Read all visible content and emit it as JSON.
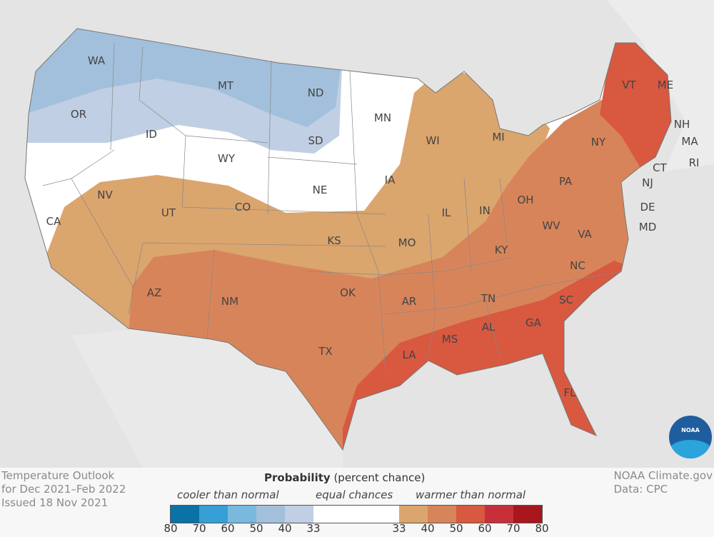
{
  "title_lines": [
    "Temperature Outlook",
    "for Dec 2021–Feb 2022",
    "Issued 18 Nov 2021"
  ],
  "credit_lines": [
    "NOAA Climate.gov",
    "Data: CPC"
  ],
  "logo_text": "NOAA",
  "legend": {
    "title_bold": "Probability",
    "title_rest": " (percent chance)",
    "categories": [
      "cooler than normal",
      "equal chances",
      "warmer than normal"
    ],
    "ticks": [
      "80",
      "70",
      "60",
      "50",
      "40",
      "33",
      "33",
      "40",
      "50",
      "60",
      "70",
      "80"
    ],
    "colors": [
      "#0b72a8",
      "#36a0d6",
      "#79b9dd",
      "#a2c0db",
      "#c0cfe3",
      "#ffffff",
      "#dba56e",
      "#d8845a",
      "#d85840",
      "#c7303a",
      "#a8161e"
    ]
  },
  "states": {
    "WA": "WA",
    "OR": "OR",
    "CA": "CA",
    "ID": "ID",
    "NV": "NV",
    "MT": "MT",
    "WY": "WY",
    "UT": "UT",
    "AZ": "AZ",
    "CO": "CO",
    "NM": "NM",
    "ND": "ND",
    "SD": "SD",
    "NE": "NE",
    "KS": "KS",
    "OK": "OK",
    "TX": "TX",
    "MN": "MN",
    "IA": "IA",
    "MO": "MO",
    "AR": "AR",
    "LA": "LA",
    "WI": "WI",
    "IL": "IL",
    "MI": "MI",
    "IN": "IN",
    "OH": "OH",
    "KY": "KY",
    "TN": "TN",
    "MS": "MS",
    "AL": "AL",
    "GA": "GA",
    "FL": "FL",
    "SC": "SC",
    "NC": "NC",
    "VA": "VA",
    "WV": "WV",
    "PA": "PA",
    "NY": "NY",
    "VT": "VT",
    "NH": "NH",
    "ME": "ME",
    "MA": "MA",
    "RI": "RI",
    "CT": "CT",
    "NJ": "NJ",
    "DE": "DE",
    "MD": "MD"
  }
}
